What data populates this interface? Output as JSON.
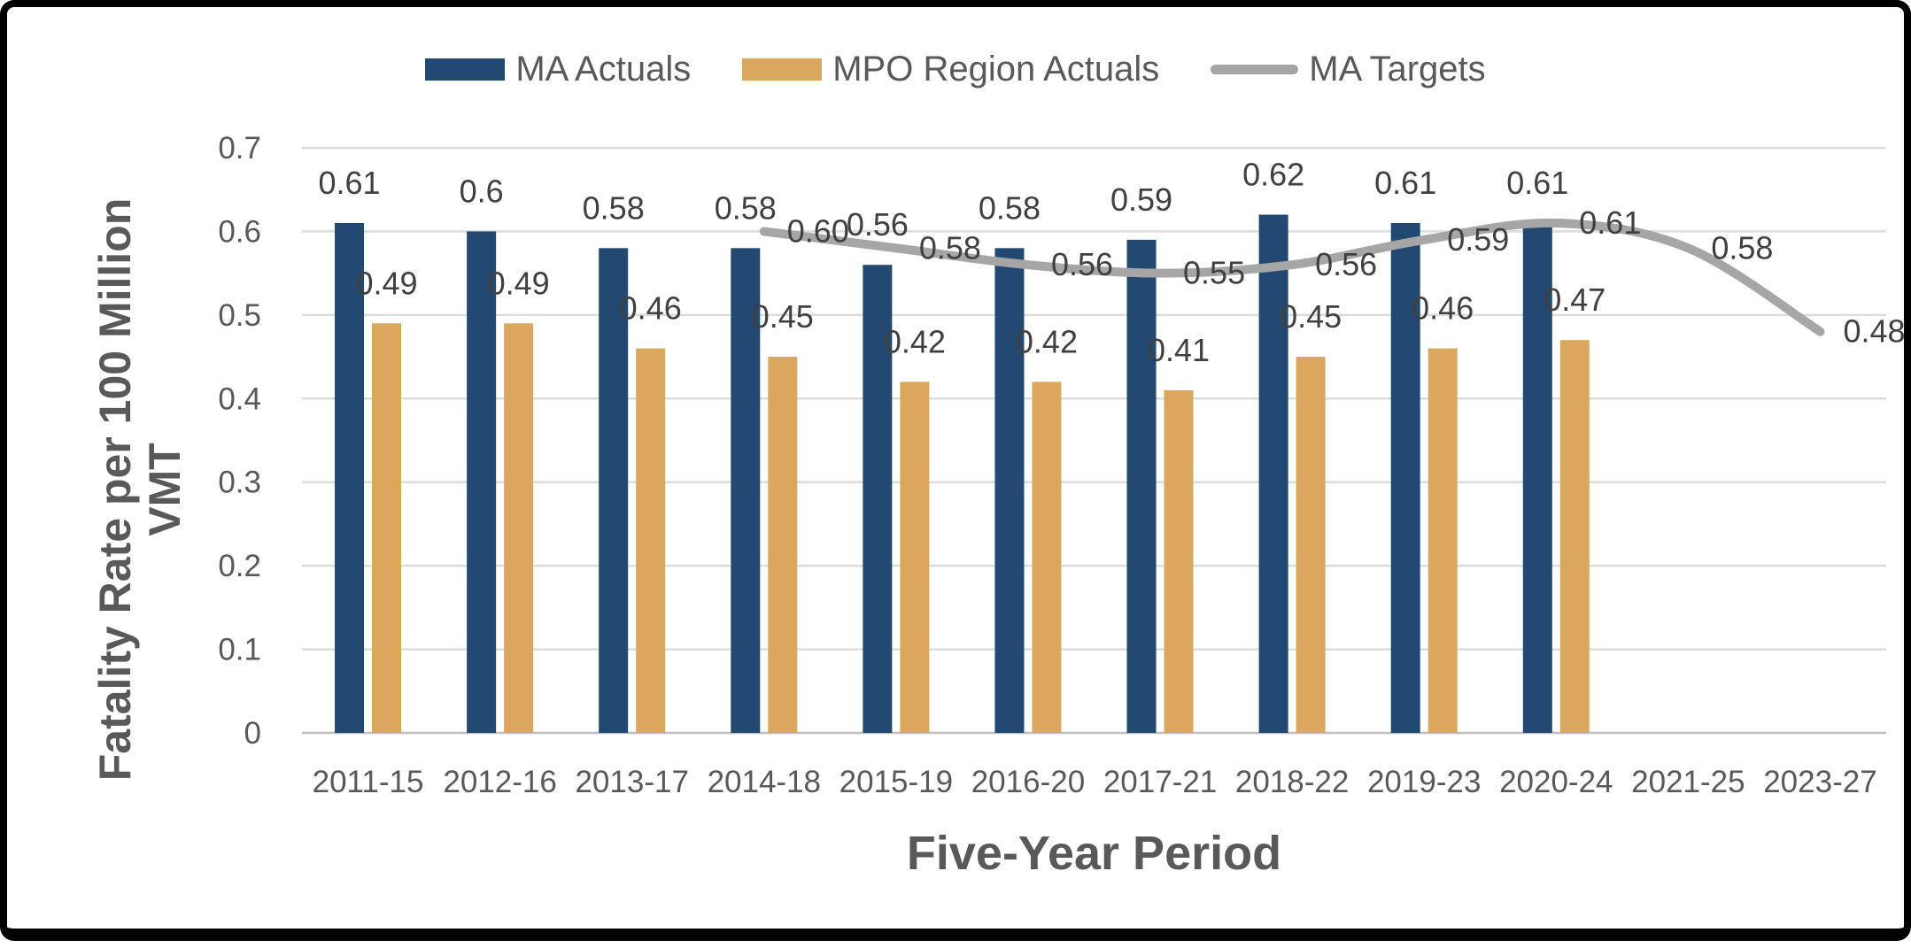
{
  "chart_data": {
    "type": "bar",
    "title": "",
    "xlabel": "Five-Year Period",
    "ylabel": "Fatality Rate per 100 Million VMT",
    "ylabel_lines": [
      "Fatality Rate per 100 Million",
      "VMT"
    ],
    "categories": [
      "2011-15",
      "2012-16",
      "2013-17",
      "2014-18",
      "2015-19",
      "2016-20",
      "2017-21",
      "2018-22",
      "2019-23",
      "2020-24",
      "2021-25",
      "2023-27"
    ],
    "yticks": [
      "0",
      "0.1",
      "0.2",
      "0.3",
      "0.4",
      "0.5",
      "0.6",
      "0.7"
    ],
    "ylim": [
      0,
      0.7
    ],
    "grid": true,
    "legend_position": "top",
    "series": [
      {
        "name": "MA Actuals",
        "kind": "bar",
        "color": "#214972",
        "values": [
          0.61,
          0.6,
          0.58,
          0.58,
          0.56,
          0.58,
          0.59,
          0.62,
          0.61,
          0.61,
          null,
          null
        ],
        "labels": [
          "0.61",
          "0.6",
          "0.58",
          "0.58",
          "0.56",
          "0.58",
          "0.59",
          "0.62",
          "0.61",
          "0.61",
          "",
          ""
        ]
      },
      {
        "name": "MPO Region Actuals",
        "kind": "bar",
        "color": "#D9A85E",
        "values": [
          0.49,
          0.49,
          0.46,
          0.45,
          0.42,
          0.42,
          0.41,
          0.45,
          0.46,
          0.47,
          null,
          null
        ],
        "labels": [
          "0.49",
          "0.49",
          "0.46",
          "0.45",
          "0.42",
          "0.42",
          "0.41",
          "0.45",
          "0.46",
          "0.47",
          "",
          ""
        ]
      },
      {
        "name": "MA Targets",
        "kind": "line",
        "color": "#A6A6A6",
        "values": [
          null,
          null,
          null,
          0.6,
          0.58,
          0.56,
          0.55,
          0.56,
          0.59,
          0.61,
          0.58,
          0.48
        ],
        "labels": [
          "",
          "",
          "",
          "0.60",
          "0.58",
          "0.56",
          "0.55",
          "0.56",
          "0.59",
          "0.61",
          "0.58",
          "0.48"
        ]
      }
    ]
  },
  "colors": {
    "gridline": "#DCDCDC",
    "axis_line": "#BFBFBF",
    "tick_text": "#595959",
    "data_label": "#404040"
  }
}
